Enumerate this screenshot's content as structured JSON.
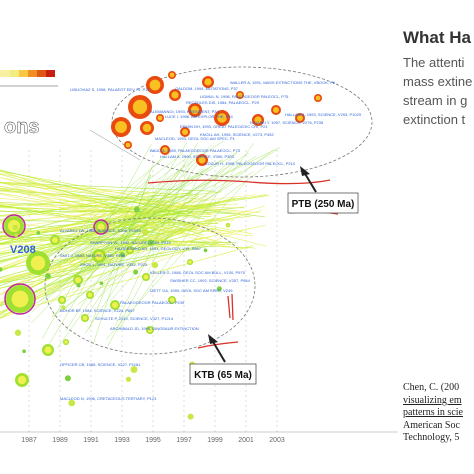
{
  "slide": {
    "title": "What Ha",
    "body_lines": [
      "The attenti",
      "mass extine",
      "stream in g",
      "extinction t"
    ],
    "citation_lines": [
      "Chen, C. (200",
      "visualizing em",
      "patterns in scie",
      "American Soc",
      "Technology, 5"
    ],
    "overlay_title_fragment": "ons"
  },
  "figure": {
    "year_ticks": [
      "1987",
      "1989",
      "1991",
      "1993",
      "1995",
      "1997",
      "1999",
      "2001",
      "2003"
    ],
    "callouts": [
      {
        "label": "PTB (250 Ma)"
      },
      {
        "label": "KTB (65 Ma)"
      }
    ],
    "ptb_cluster_labels": [
      "LIBLIOHAZ S, 1998, PALAEOT EEV 74, P11",
      "WALLER A, 1991, MASS EXTINCTIONS THE, VBOOK, P6",
      "GALDOM, 1994, MUTATIONS, P37",
      "LIDMUL N, 1998, PALEOGEOGR PALEOCL, P75",
      "RECEDLES DIS, 1984, PALAEOCL, P29",
      "ALEMANNOI, 1993, PRESIDENT, P34",
      "LUCE I, 1996, AM EXPLOR THE, P34",
      "HALLAM A, 1993, SCIENCE, V293, P1029",
      "ISOZAKI Y, 1997, SCIENCE, V276, P235",
      "ERMIN DH, 1993, GREAT PALEOZOIC CRI, P21",
      "KNOLL AH, 1996, SCIENCE, V273, P452",
      "MACLEOD, 1993, GEOL SOC AM SPEC, P1",
      "BAUD A, 1989, PALAEOGEOGR PALAEOCL, P73",
      "HALLAM A, 1990, SCIENCE, V390, P303",
      "KOZUR H, 1998, PALEOGEOGR PALEOCL, P210"
    ],
    "ktb_cluster_labels": [
      "ALVAREZ LW, 1980, SCIENCE, V208, P1095",
      "KELLER G, 1988, GEOL SOC AM BULL, V100, P975",
      "SHARPTON VL, 1992, NATURE, V359, P819",
      "HILDEBRAND AR, 1991, GEOLOGY, V19, P867",
      "SMIT J, 1980, NATURE, V285, P198",
      "ZHOU L, 1991, NATURE, V352, P225",
      "PALAEOGEOGR PALAEOCL, P239",
      "SWISHER CC, 1992, SCIENCE, V257, P954",
      "IZETT GA, 1990, GEOL SOC AM SPEC, V249",
      "BOHOR BF, 1984, SCIENCE, V224, P867",
      "SCHULTE P, 2010, SCIENCE, V327, P1214",
      "ARCHIBALD JD, 1996, DINOSAUR EXTINCTION",
      "OFFICER CB, 1985, SCIENCE, V227, P1161",
      "MACLEOD N, 1996, CRETACEOUS TERTIARY, P123"
    ],
    "big_node_label": "V208",
    "colors": {
      "ptb_nodes": "#f0a010",
      "ktb_nodes": "#b8f03c",
      "labels": "#2e63d8",
      "red_annotation": "#d8322a",
      "legend_bar": [
        "#f4ec80",
        "#f8c840",
        "#f09020",
        "#e05818",
        "#c82010"
      ]
    }
  }
}
